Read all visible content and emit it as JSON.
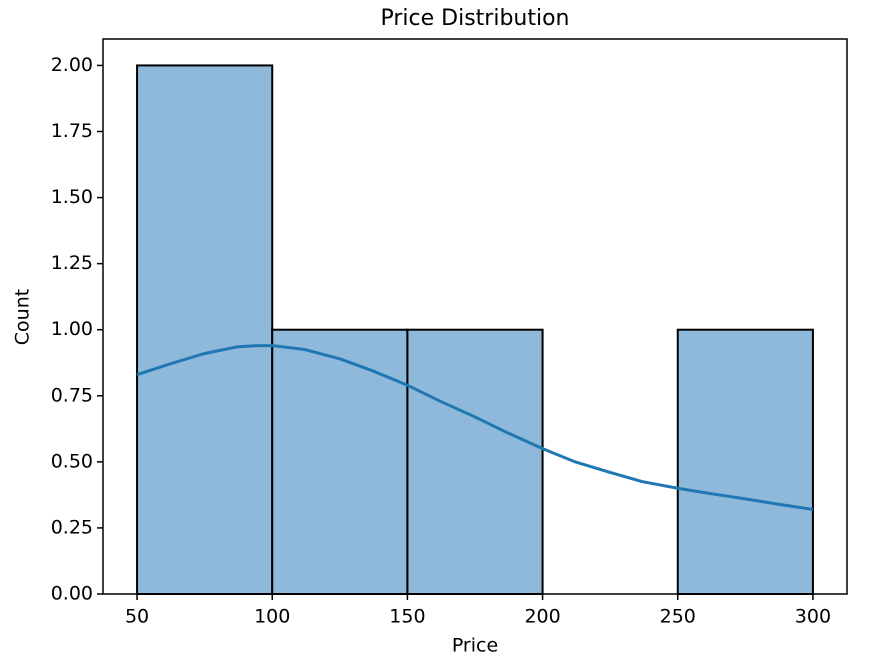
{
  "chart_data": {
    "type": "histogram",
    "title": "Price Distribution",
    "x_label": "Price",
    "y_label": "Count",
    "bins": [
      50,
      100,
      150,
      200,
      250,
      300
    ],
    "counts": [
      2,
      1,
      1,
      0,
      1
    ],
    "color": "#8fb9da",
    "edge_color": "#000000",
    "line": {
      "x": [
        50,
        62,
        75,
        87,
        95,
        100,
        112,
        125,
        137,
        150,
        162,
        175,
        187,
        200,
        212,
        225,
        237,
        250,
        262,
        275,
        287,
        300
      ],
      "values": [
        0.83,
        0.87,
        0.91,
        0.935,
        0.94,
        0.94,
        0.925,
        0.89,
        0.845,
        0.79,
        0.73,
        0.67,
        0.61,
        0.55,
        0.5,
        0.46,
        0.425,
        0.4,
        0.38,
        0.36,
        0.34,
        0.32
      ],
      "color": "#1f77b4"
    },
    "xlim": [
      37.4,
      312.6
    ],
    "ylim": [
      0,
      2.1
    ],
    "xticks": [
      50,
      100,
      150,
      200,
      250,
      300
    ],
    "yticks": [
      {
        "value": 0,
        "label": "0.00"
      },
      {
        "value": 0.25,
        "label": "0.25"
      },
      {
        "value": 0.5,
        "label": "0.50"
      },
      {
        "value": 0.75,
        "label": "0.75"
      },
      {
        "value": 1,
        "label": "1.00"
      },
      {
        "value": 1.25,
        "label": "1.25"
      },
      {
        "value": 1.5,
        "label": "1.50"
      },
      {
        "value": 1.75,
        "label": "1.75"
      },
      {
        "value": 2,
        "label": "2.00"
      }
    ],
    "grid": false
  }
}
